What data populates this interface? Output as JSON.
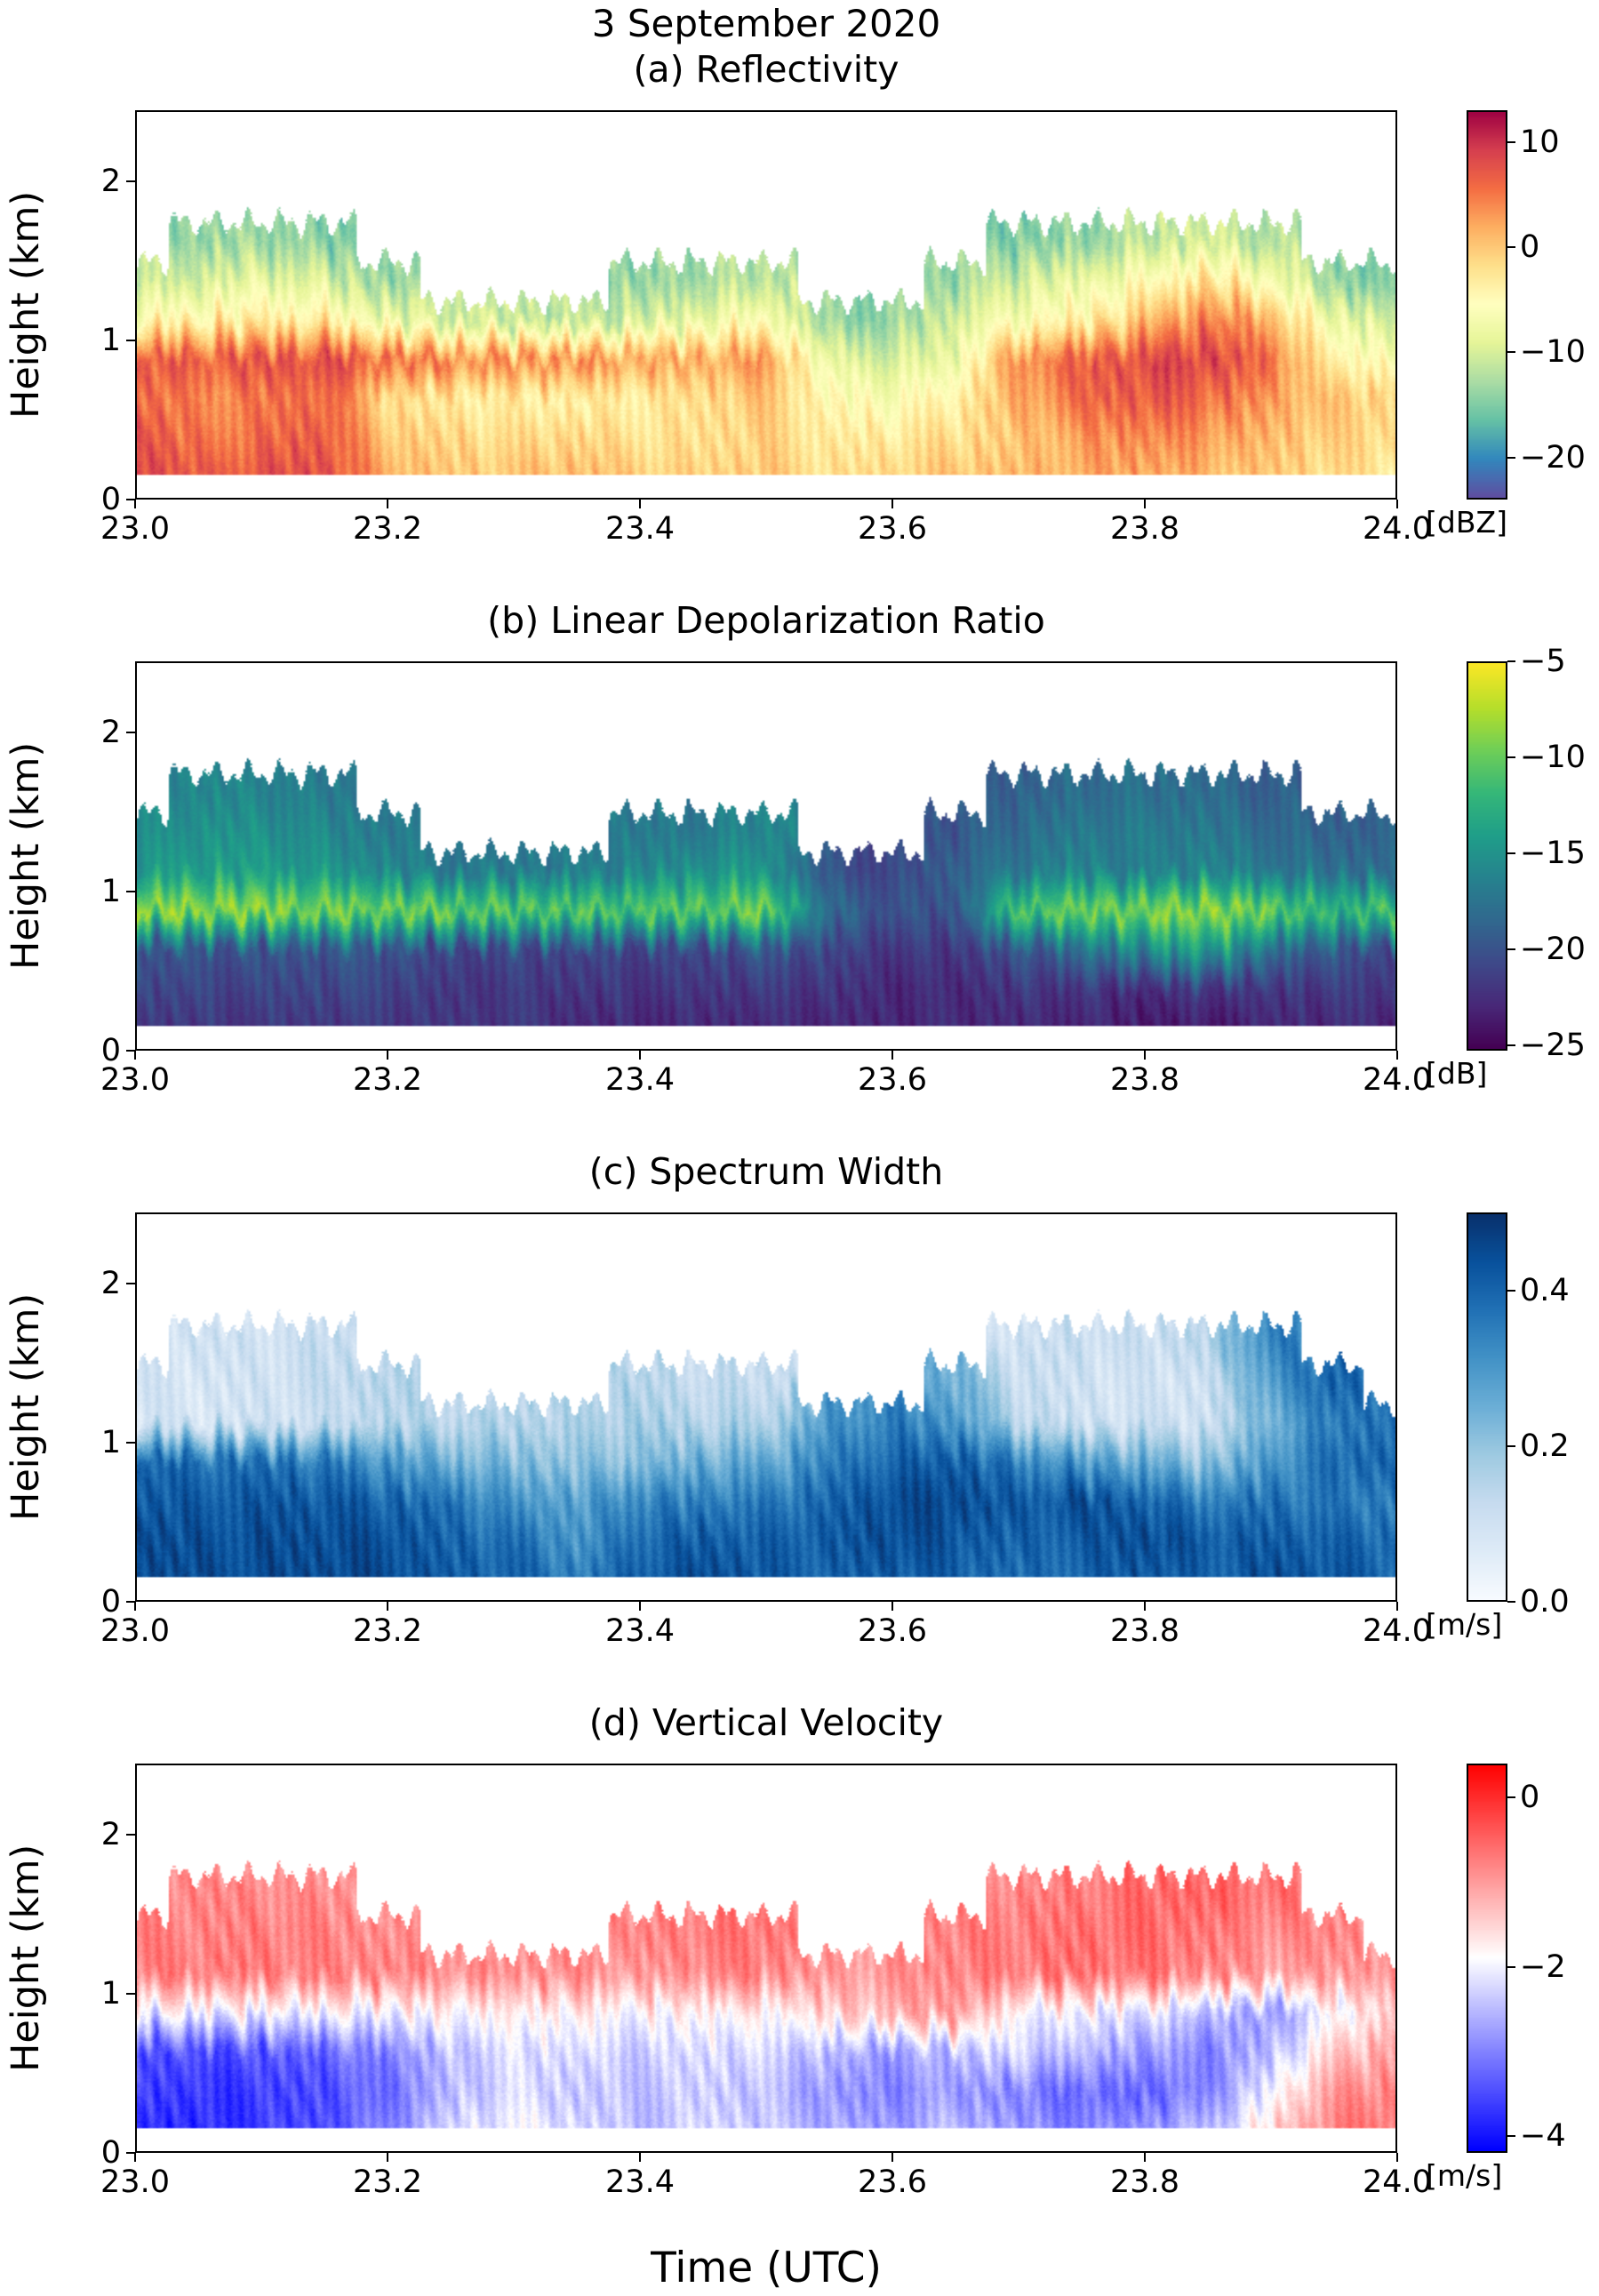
{
  "figure": {
    "main_title": "3 September 2020",
    "x_axis_label": "Time (UTC)",
    "y_axis_label": "Height (km)"
  },
  "chart_data": {
    "type": "heatmap",
    "title": "3 September 2020",
    "x_label": "Time (UTC)",
    "y_label": "Height (km)",
    "x_range": [
      23.0,
      24.0
    ],
    "y_range": [
      0,
      2.45
    ],
    "x_ticks": [
      {
        "label": "23.0",
        "value": 23.0
      },
      {
        "label": "23.2",
        "value": 23.2
      },
      {
        "label": "23.4",
        "value": 23.4
      },
      {
        "label": "23.6",
        "value": 23.6
      },
      {
        "label": "23.8",
        "value": 23.8
      },
      {
        "label": "24.0",
        "value": 24.0
      }
    ],
    "y_ticks": [
      {
        "label": "0",
        "value": 0
      },
      {
        "label": "1",
        "value": 1
      },
      {
        "label": "2",
        "value": 2
      }
    ],
    "time_bins": [
      23.0,
      23.05,
      23.1,
      23.15,
      23.2,
      23.25,
      23.3,
      23.35,
      23.4,
      23.45,
      23.5,
      23.55,
      23.6,
      23.65,
      23.7,
      23.75,
      23.8,
      23.85,
      23.9,
      23.95,
      24.0
    ],
    "height_bins": [
      0.125,
      0.375,
      0.625,
      0.875,
      1.125,
      1.375,
      1.625
    ],
    "no_data_below_km": 0.14,
    "grid_note": "values[i][j] = estimated field value at time_bins[i], height_bins[j]; null = no echo (white)",
    "panels": [
      {
        "id": "a",
        "title": "(a) Reflectivity",
        "units": "[dBZ]",
        "vmin": -24,
        "vmax": 13,
        "colorbar_ticks": [
          {
            "label": "10",
            "value": 10
          },
          {
            "label": "0",
            "value": 0
          },
          {
            "label": "−10",
            "value": -10
          },
          {
            "label": "−20",
            "value": -20
          }
        ],
        "colormap": {
          "name": "spectral_r",
          "stops": [
            [
              0,
              "#5e4fa2"
            ],
            [
              0.1,
              "#3288bd"
            ],
            [
              0.2,
              "#66c2a5"
            ],
            [
              0.3,
              "#abdda4"
            ],
            [
              0.4,
              "#e6f598"
            ],
            [
              0.5,
              "#ffffbf"
            ],
            [
              0.6,
              "#fee08b"
            ],
            [
              0.7,
              "#fdae61"
            ],
            [
              0.8,
              "#f46d43"
            ],
            [
              0.9,
              "#d53e4f"
            ],
            [
              1,
              "#9e0142"
            ]
          ]
        },
        "values": [
          [
            9,
            8,
            6,
            7,
            -6,
            -12,
            null
          ],
          [
            7,
            5,
            4,
            7,
            -4,
            -10,
            -14
          ],
          [
            8,
            6,
            5,
            8,
            -3,
            -8,
            -13
          ],
          [
            8,
            7,
            6,
            8,
            -4,
            -10,
            -15
          ],
          [
            2,
            0,
            -2,
            6,
            -8,
            -14,
            null
          ],
          [
            0,
            -1,
            -3,
            5,
            -10,
            null,
            null
          ],
          [
            0,
            -2,
            -4,
            4,
            -11,
            null,
            null
          ],
          [
            1,
            -1,
            -4,
            4,
            -12,
            null,
            null
          ],
          [
            0,
            -2,
            -3,
            3,
            -10,
            -14,
            null
          ],
          [
            -1,
            -2,
            -2,
            2,
            -8,
            -13,
            null
          ],
          [
            0,
            -1,
            0,
            3,
            -6,
            -12,
            null
          ],
          [
            -2,
            -3,
            -5,
            -8,
            -14,
            null,
            null
          ],
          [
            -1,
            -3,
            -6,
            -10,
            -14,
            null,
            null
          ],
          [
            0,
            -2,
            -4,
            -8,
            -10,
            -14,
            null
          ],
          [
            1,
            0,
            2,
            4,
            -6,
            -10,
            -15
          ],
          [
            2,
            3,
            6,
            7,
            -4,
            -8,
            -14
          ],
          [
            2,
            4,
            7,
            8,
            0,
            -6,
            -12
          ],
          [
            1,
            3,
            6,
            9,
            5,
            -2,
            -10
          ],
          [
            0,
            1,
            3,
            6,
            2,
            -6,
            -12
          ],
          [
            -2,
            -1,
            0,
            -4,
            -8,
            -14,
            null
          ],
          [
            -3,
            -2,
            -1,
            -6,
            -10,
            -16,
            null
          ]
        ]
      },
      {
        "id": "b",
        "title": "(b) Linear Depolarization Ratio",
        "units": "[dB]",
        "vmin": -25.3,
        "vmax": -5,
        "colorbar_ticks": [
          {
            "label": "−5",
            "value": -5
          },
          {
            "label": "−10",
            "value": -10
          },
          {
            "label": "−15",
            "value": -15
          },
          {
            "label": "−20",
            "value": -20
          },
          {
            "label": "−25",
            "value": -25
          }
        ],
        "colormap": {
          "name": "viridis",
          "stops": [
            [
              0,
              "#440154"
            ],
            [
              0.11,
              "#482878"
            ],
            [
              0.22,
              "#3e4989"
            ],
            [
              0.33,
              "#31688e"
            ],
            [
              0.44,
              "#26828e"
            ],
            [
              0.55,
              "#1f9e89"
            ],
            [
              0.66,
              "#35b779"
            ],
            [
              0.77,
              "#6ece58"
            ],
            [
              0.88,
              "#b5de2b"
            ],
            [
              1,
              "#fde725"
            ]
          ]
        },
        "values": [
          [
            -22,
            -21,
            -20,
            -8,
            -15,
            -16,
            null
          ],
          [
            -22,
            -21,
            -20,
            -8,
            -14,
            -15,
            -16
          ],
          [
            -22,
            -21,
            -20,
            -8,
            -14,
            -15,
            -16
          ],
          [
            -22,
            -21,
            -20,
            -9,
            -15,
            -16,
            -17
          ],
          [
            -22,
            -21,
            -20,
            -9,
            -16,
            -17,
            null
          ],
          [
            -22,
            -22,
            -21,
            -9,
            -17,
            null,
            null
          ],
          [
            -22,
            -22,
            -21,
            -10,
            -17,
            null,
            null
          ],
          [
            -23,
            -22,
            -21,
            -10,
            -17,
            null,
            null
          ],
          [
            -23,
            -22,
            -21,
            -10,
            -16,
            -17,
            null
          ],
          [
            -23,
            -22,
            -21,
            -10,
            -15,
            -17,
            null
          ],
          [
            -23,
            -22,
            -20,
            -9,
            -15,
            -16,
            null
          ],
          [
            -23,
            -22,
            -21,
            -18,
            -20,
            null,
            null
          ],
          [
            -23,
            -23,
            -22,
            -20,
            -21,
            null,
            null
          ],
          [
            -23,
            -23,
            -22,
            -20,
            -19,
            -20,
            null
          ],
          [
            -23,
            -22,
            -20,
            -10,
            -17,
            -18,
            -19
          ],
          [
            -23,
            -22,
            -18,
            -9,
            -16,
            -17,
            -18
          ],
          [
            -24,
            -23,
            -16,
            -9,
            -17,
            -17,
            -18
          ],
          [
            -24,
            -22,
            -14,
            -8,
            -16,
            -17,
            -18
          ],
          [
            -23,
            -22,
            -18,
            -9,
            -17,
            -18,
            -19
          ],
          [
            -23,
            -22,
            -20,
            -12,
            -18,
            -19,
            null
          ],
          [
            -23,
            -22,
            -21,
            -10,
            -18,
            -19,
            null
          ]
        ]
      },
      {
        "id": "c",
        "title": "(c) Spectrum Width",
        "units": "[m/s]",
        "vmin": 0,
        "vmax": 0.5,
        "colorbar_ticks": [
          {
            "label": "0.4",
            "value": 0.4
          },
          {
            "label": "0.2",
            "value": 0.2
          },
          {
            "label": "0.0",
            "value": 0.0
          }
        ],
        "colormap": {
          "name": "blues",
          "stops": [
            [
              0,
              "#f7fbff"
            ],
            [
              0.125,
              "#deebf7"
            ],
            [
              0.25,
              "#c6dbef"
            ],
            [
              0.375,
              "#9ecae1"
            ],
            [
              0.5,
              "#6baed6"
            ],
            [
              0.625,
              "#4292c6"
            ],
            [
              0.75,
              "#2171b5"
            ],
            [
              0.875,
              "#08519c"
            ],
            [
              1,
              "#08306b"
            ]
          ]
        },
        "values": [
          [
            0.45,
            0.45,
            0.42,
            0.4,
            0.08,
            0.08,
            null
          ],
          [
            0.45,
            0.44,
            0.42,
            0.38,
            0.08,
            0.08,
            0.1
          ],
          [
            0.45,
            0.45,
            0.43,
            0.38,
            0.1,
            0.1,
            0.1
          ],
          [
            0.45,
            0.44,
            0.42,
            0.35,
            0.1,
            0.12,
            0.12
          ],
          [
            0.45,
            0.44,
            0.4,
            0.3,
            0.15,
            0.15,
            null
          ],
          [
            0.42,
            0.4,
            0.38,
            0.25,
            0.15,
            null,
            null
          ],
          [
            0.4,
            0.38,
            0.3,
            0.22,
            0.15,
            null,
            null
          ],
          [
            0.35,
            0.3,
            0.28,
            0.2,
            0.15,
            null,
            null
          ],
          [
            0.42,
            0.4,
            0.35,
            0.22,
            0.18,
            0.15,
            null
          ],
          [
            0.45,
            0.42,
            0.35,
            0.25,
            0.15,
            0.12,
            null
          ],
          [
            0.42,
            0.4,
            0.35,
            0.25,
            0.15,
            0.12,
            null
          ],
          [
            0.4,
            0.42,
            0.4,
            0.35,
            0.3,
            null,
            null
          ],
          [
            0.42,
            0.45,
            0.45,
            0.4,
            0.35,
            null,
            null
          ],
          [
            0.4,
            0.42,
            0.45,
            0.42,
            0.3,
            0.25,
            null
          ],
          [
            0.38,
            0.4,
            0.42,
            0.35,
            0.15,
            0.12,
            0.1
          ],
          [
            0.4,
            0.42,
            0.45,
            0.3,
            0.1,
            0.1,
            0.12
          ],
          [
            0.42,
            0.45,
            0.4,
            0.25,
            0.1,
            0.08,
            0.1
          ],
          [
            0.4,
            0.42,
            0.35,
            0.2,
            0.1,
            0.1,
            0.15
          ],
          [
            0.45,
            0.42,
            0.38,
            0.3,
            0.25,
            0.3,
            0.35
          ],
          [
            0.42,
            0.4,
            0.35,
            0.38,
            0.35,
            0.4,
            null
          ],
          [
            0.4,
            0.38,
            0.35,
            0.4,
            0.38,
            null,
            null
          ]
        ]
      },
      {
        "id": "d",
        "title": "(d) Vertical Velocity",
        "units": "[m/s]",
        "vmin": -4.2,
        "vmax": 0.4,
        "colorbar_ticks": [
          {
            "label": "0",
            "value": 0
          },
          {
            "label": "−2",
            "value": -2
          },
          {
            "label": "−4",
            "value": -4
          }
        ],
        "colormap": {
          "name": "bwr",
          "stops": [
            [
              0,
              "#0000ff"
            ],
            [
              0.5,
              "#ffffff"
            ],
            [
              1,
              "#ff0000"
            ]
          ]
        },
        "values": [
          [
            -3.8,
            -3.6,
            -3.5,
            -2.0,
            -0.8,
            -0.8,
            null
          ],
          [
            -3.8,
            -3.7,
            -3.5,
            -2.0,
            -0.7,
            -0.8,
            -0.8
          ],
          [
            -3.6,
            -3.6,
            -3.4,
            -2.0,
            -0.7,
            -0.7,
            -0.8
          ],
          [
            -3.5,
            -3.5,
            -3.3,
            -2.0,
            -0.8,
            -0.8,
            -0.9
          ],
          [
            -3.0,
            -3.2,
            -3.0,
            -2.0,
            -0.8,
            -0.9,
            null
          ],
          [
            -2.2,
            -2.5,
            -2.4,
            -1.8,
            -0.8,
            null,
            null
          ],
          [
            -2.0,
            -2.2,
            -2.2,
            -1.8,
            -0.9,
            null,
            null
          ],
          [
            -2.2,
            -2.4,
            -2.2,
            -1.8,
            -0.9,
            null,
            null
          ],
          [
            -2.5,
            -2.4,
            -2.3,
            -1.9,
            -1.0,
            -0.8,
            null
          ],
          [
            -2.2,
            -2.3,
            -2.2,
            -1.8,
            -0.8,
            -0.7,
            null
          ],
          [
            -2.4,
            -2.5,
            -2.3,
            -1.9,
            -0.8,
            -0.7,
            null
          ],
          [
            -2.6,
            -2.8,
            -2.5,
            -1.5,
            -1.0,
            null,
            null
          ],
          [
            -2.8,
            -3.0,
            -2.8,
            -1.2,
            -0.9,
            null,
            null
          ],
          [
            -2.5,
            -2.8,
            -2.5,
            -1.0,
            -0.8,
            -0.8,
            null
          ],
          [
            -2.8,
            -3.0,
            -2.2,
            -1.9,
            -0.7,
            -0.7,
            -0.8
          ],
          [
            -3.0,
            -3.2,
            -2.5,
            -2.0,
            -0.6,
            -0.6,
            -0.7
          ],
          [
            -2.8,
            -3.3,
            -2.8,
            -2.2,
            -0.7,
            -0.6,
            -0.6
          ],
          [
            -2.5,
            -3.0,
            -3.0,
            -2.5,
            -0.8,
            -0.7,
            -0.5
          ],
          [
            -1.5,
            -2.0,
            -2.5,
            -2.8,
            -1.0,
            -0.8,
            -0.6
          ],
          [
            -0.8,
            -1.0,
            -1.5,
            -2.0,
            -1.0,
            -0.8,
            null
          ],
          [
            -0.6,
            -0.8,
            -1.0,
            -1.5,
            -0.9,
            null,
            null
          ]
        ]
      }
    ]
  }
}
